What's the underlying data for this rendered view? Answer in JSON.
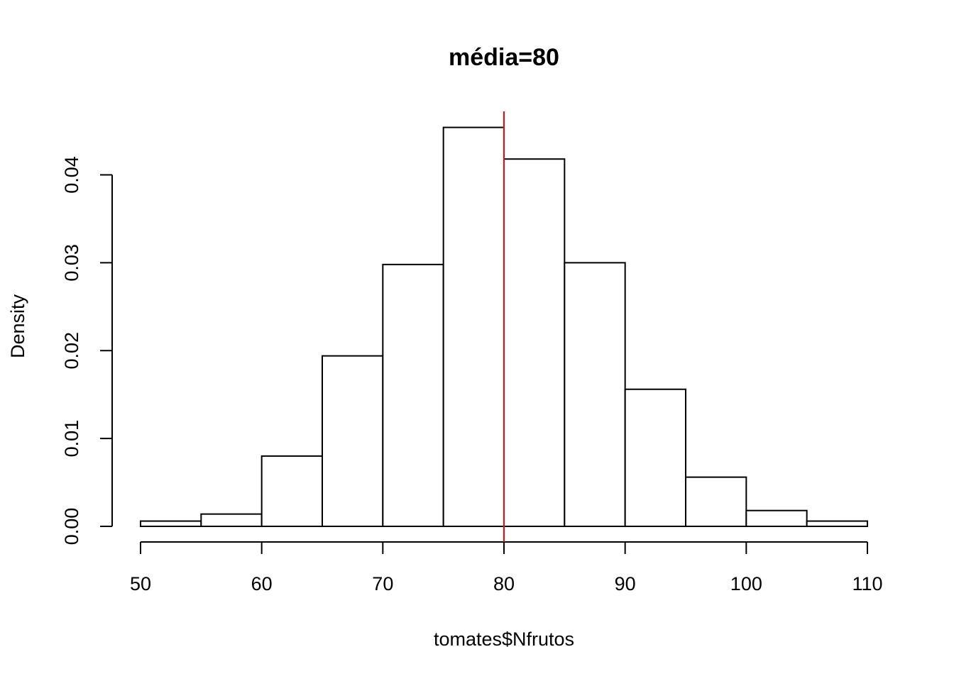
{
  "chart_data": {
    "type": "bar",
    "title": "média=80",
    "xlabel": "tomates$Nfrutos",
    "ylabel": "Density",
    "bins": [
      {
        "start": 50,
        "end": 55,
        "value": 0.0006
      },
      {
        "start": 55,
        "end": 60,
        "value": 0.0014
      },
      {
        "start": 60,
        "end": 65,
        "value": 0.008
      },
      {
        "start": 65,
        "end": 70,
        "value": 0.0194
      },
      {
        "start": 70,
        "end": 75,
        "value": 0.0298
      },
      {
        "start": 75,
        "end": 80,
        "value": 0.0454
      },
      {
        "start": 80,
        "end": 85,
        "value": 0.0418
      },
      {
        "start": 85,
        "end": 90,
        "value": 0.03
      },
      {
        "start": 90,
        "end": 95,
        "value": 0.0156
      },
      {
        "start": 95,
        "end": 100,
        "value": 0.0056
      },
      {
        "start": 100,
        "end": 105,
        "value": 0.0018
      },
      {
        "start": 105,
        "end": 110,
        "value": 0.0006
      }
    ],
    "xlim": [
      50,
      110
    ],
    "ylim": [
      0,
      0.047
    ],
    "xticks": [
      {
        "value": 50,
        "label": "50"
      },
      {
        "value": 60,
        "label": "60"
      },
      {
        "value": 70,
        "label": "70"
      },
      {
        "value": 80,
        "label": "80"
      },
      {
        "value": 90,
        "label": "90"
      },
      {
        "value": 100,
        "label": "100"
      },
      {
        "value": 110,
        "label": "110"
      }
    ],
    "yticks": [
      {
        "value": 0.0,
        "label": "0.00"
      },
      {
        "value": 0.01,
        "label": "0.01"
      },
      {
        "value": 0.02,
        "label": "0.02"
      },
      {
        "value": 0.03,
        "label": "0.03"
      },
      {
        "value": 0.04,
        "label": "0.04"
      }
    ],
    "reference_line": {
      "x": 80,
      "color": "#ff0000"
    },
    "bar_fill": "#ffffff",
    "bar_stroke": "#000000",
    "grid": false,
    "legend": "none"
  }
}
